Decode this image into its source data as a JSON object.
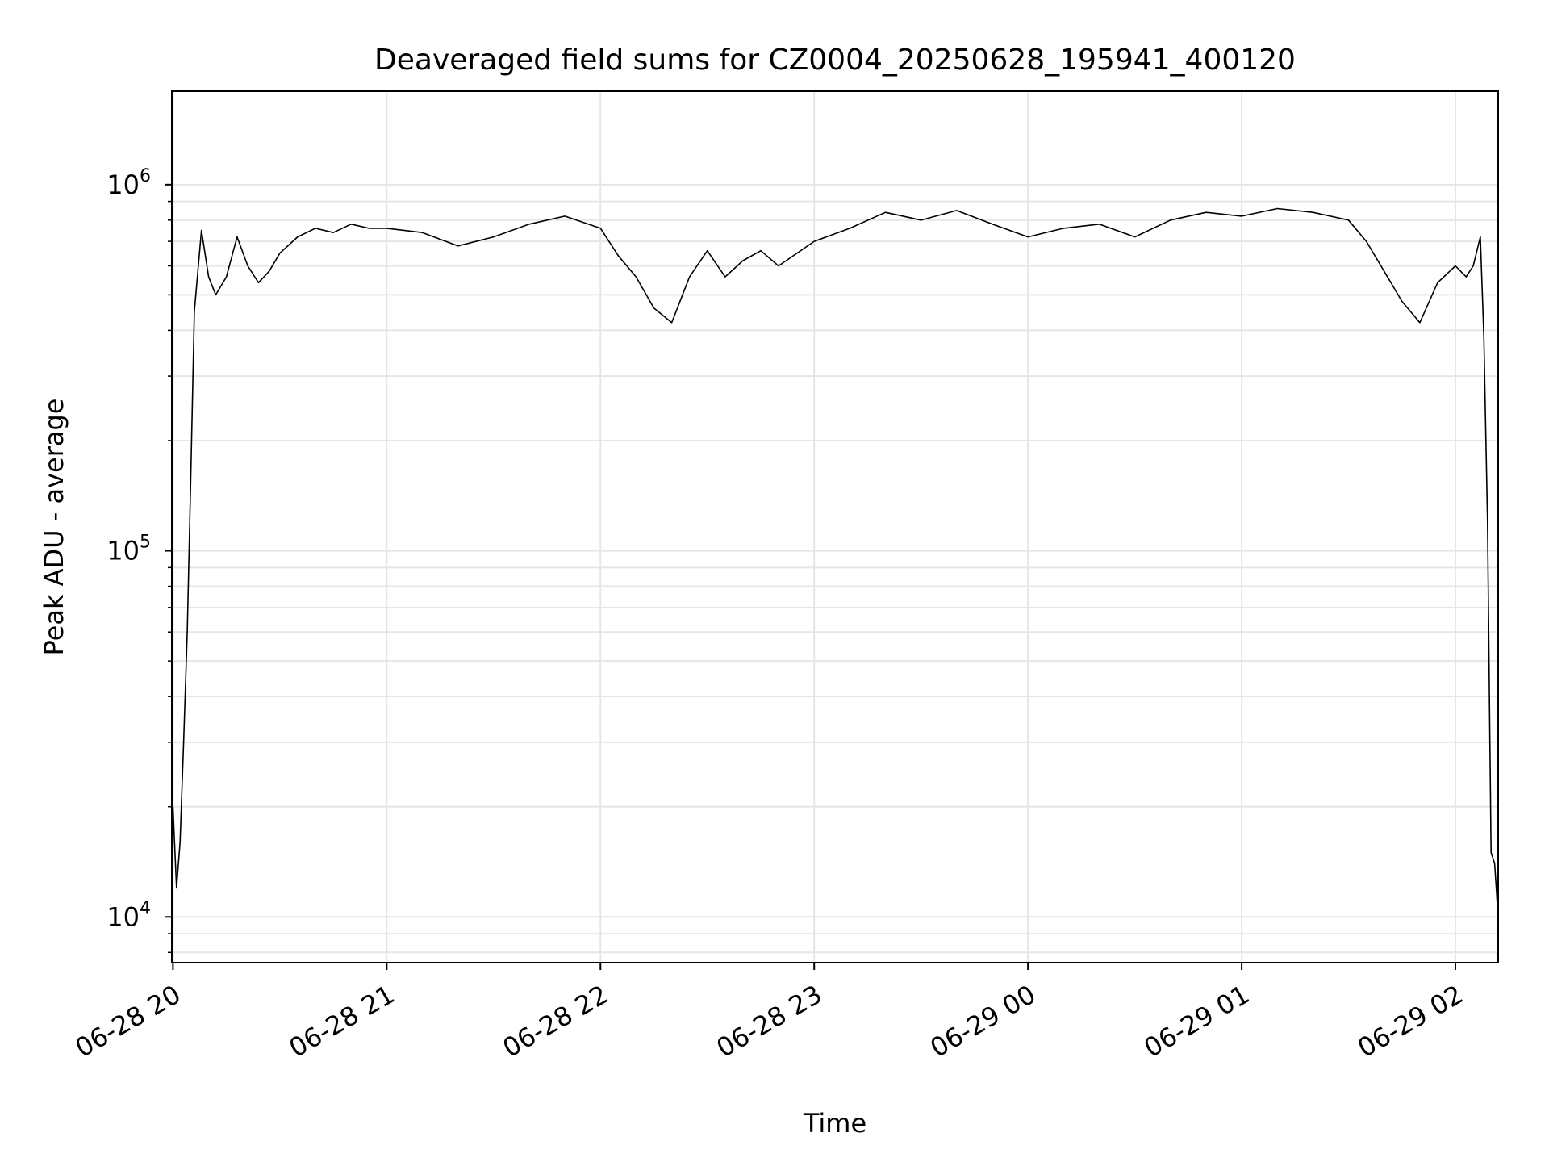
{
  "chart_data": {
    "type": "line",
    "title": "Deaveraged field sums for CZ0004_20250628_195941_400120",
    "xlabel": "Time",
    "ylabel": "Peak ADU - average",
    "x_unit": "time",
    "xlim": [
      "2025-06-28 19:59:41",
      "2025-06-29 02:12:00"
    ],
    "ylim": [
      7500,
      1800000
    ],
    "y_scale": "log",
    "grid": true,
    "legend": "none",
    "line_color": "#000000",
    "x_ticks": [
      {
        "label": "06-28 20",
        "time": "2025-06-28 20:00"
      },
      {
        "label": "06-28 21",
        "time": "2025-06-28 21:00"
      },
      {
        "label": "06-28 22",
        "time": "2025-06-28 22:00"
      },
      {
        "label": "06-28 23",
        "time": "2025-06-28 23:00"
      },
      {
        "label": "06-29 00",
        "time": "2025-06-29 00:00"
      },
      {
        "label": "06-29 01",
        "time": "2025-06-29 01:00"
      },
      {
        "label": "06-29 02",
        "time": "2025-06-29 02:00"
      }
    ],
    "y_ticks": [
      {
        "base": "10",
        "exp": "4",
        "value": 10000
      },
      {
        "base": "10",
        "exp": "5",
        "value": 100000
      },
      {
        "base": "10",
        "exp": "6",
        "value": 1000000
      }
    ],
    "series": [
      {
        "x": [
          "2025-06-28 20:00",
          "2025-06-28 20:01",
          "2025-06-28 20:02",
          "2025-06-28 20:03",
          "2025-06-28 20:04",
          "2025-06-28 20:05",
          "2025-06-28 20:06",
          "2025-06-28 20:08",
          "2025-06-28 20:10",
          "2025-06-28 20:12",
          "2025-06-28 20:15",
          "2025-06-28 20:18",
          "2025-06-28 20:21",
          "2025-06-28 20:24",
          "2025-06-28 20:27",
          "2025-06-28 20:30",
          "2025-06-28 20:35",
          "2025-06-28 20:40",
          "2025-06-28 20:45",
          "2025-06-28 20:50",
          "2025-06-28 20:55",
          "2025-06-28 21:00",
          "2025-06-28 21:10",
          "2025-06-28 21:20",
          "2025-06-28 21:30",
          "2025-06-28 21:40",
          "2025-06-28 21:50",
          "2025-06-28 22:00",
          "2025-06-28 22:05",
          "2025-06-28 22:10",
          "2025-06-28 22:15",
          "2025-06-28 22:20",
          "2025-06-28 22:25",
          "2025-06-28 22:30",
          "2025-06-28 22:35",
          "2025-06-28 22:40",
          "2025-06-28 22:45",
          "2025-06-28 22:50",
          "2025-06-28 23:00",
          "2025-06-28 23:10",
          "2025-06-28 23:20",
          "2025-06-28 23:30",
          "2025-06-28 23:40",
          "2025-06-28 23:50",
          "2025-06-29 00:00",
          "2025-06-29 00:10",
          "2025-06-29 00:20",
          "2025-06-29 00:30",
          "2025-06-29 00:40",
          "2025-06-29 00:50",
          "2025-06-29 01:00",
          "2025-06-29 01:10",
          "2025-06-29 01:20",
          "2025-06-29 01:30",
          "2025-06-29 01:35",
          "2025-06-29 01:40",
          "2025-06-29 01:45",
          "2025-06-29 01:50",
          "2025-06-29 01:55",
          "2025-06-29 02:00",
          "2025-06-29 02:03",
          "2025-06-29 02:05",
          "2025-06-29 02:07",
          "2025-06-29 02:08",
          "2025-06-29 02:09",
          "2025-06-29 02:10",
          "2025-06-29 02:11",
          "2025-06-29 02:12"
        ],
        "y": [
          20000,
          12000,
          16000,
          30000,
          60000,
          160000,
          450000,
          750000,
          560000,
          500000,
          560000,
          720000,
          600000,
          540000,
          580000,
          650000,
          720000,
          760000,
          740000,
          780000,
          760000,
          760000,
          740000,
          680000,
          720000,
          780000,
          820000,
          760000,
          640000,
          560000,
          460000,
          420000,
          560000,
          660000,
          560000,
          620000,
          660000,
          600000,
          700000,
          760000,
          840000,
          800000,
          850000,
          780000,
          720000,
          760000,
          780000,
          720000,
          800000,
          840000,
          820000,
          860000,
          840000,
          800000,
          700000,
          580000,
          480000,
          420000,
          540000,
          600000,
          560000,
          600000,
          720000,
          380000,
          120000,
          15000,
          14000,
          10000
        ]
      }
    ]
  }
}
